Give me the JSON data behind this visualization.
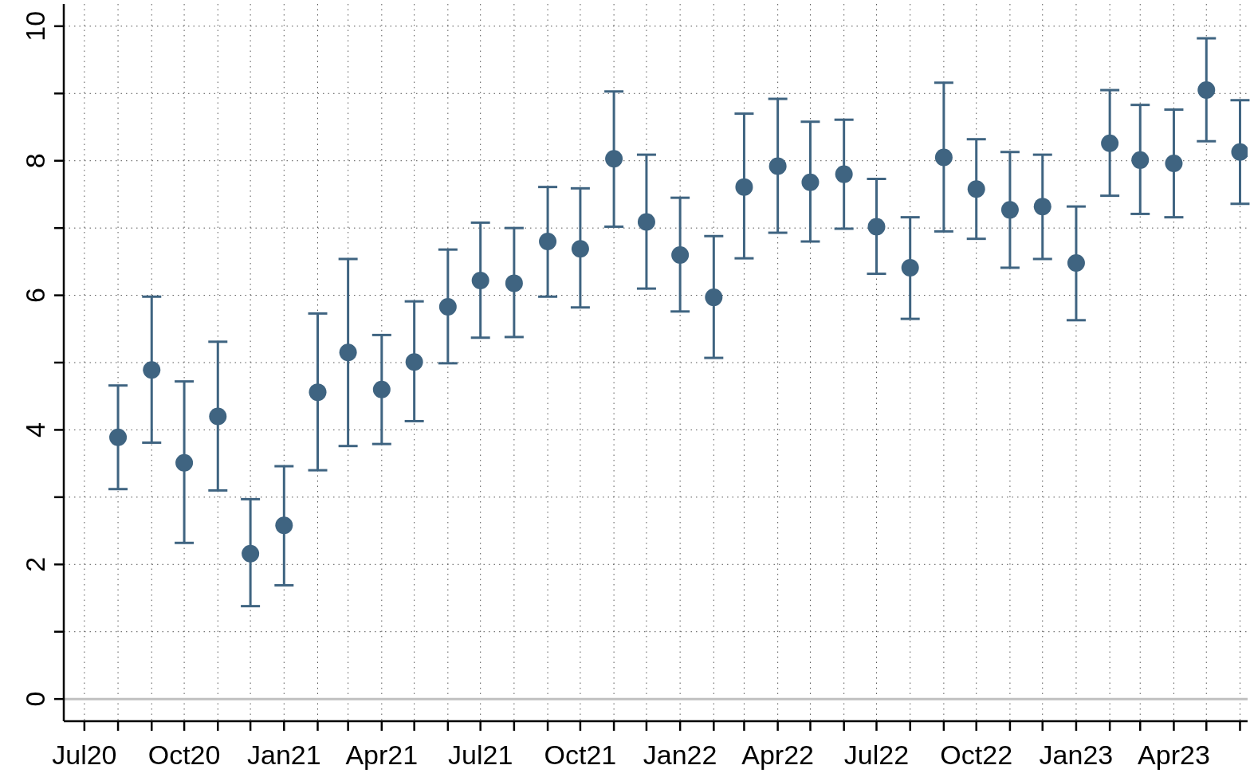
{
  "chart_data": {
    "type": "scatter",
    "marker": "circle",
    "grid": true,
    "line_style": "dotted",
    "x": [
      "2020-08",
      "2020-09",
      "2020-10",
      "2020-11",
      "2020-12",
      "2021-01",
      "2021-02",
      "2021-03",
      "2021-04",
      "2021-05",
      "2021-06",
      "2021-07",
      "2021-08",
      "2021-09",
      "2021-10",
      "2021-11",
      "2021-12",
      "2022-01",
      "2022-02",
      "2022-03",
      "2022-04",
      "2022-05",
      "2022-06",
      "2022-07",
      "2022-08",
      "2022-09",
      "2022-10",
      "2022-11",
      "2022-12",
      "2023-01",
      "2023-02",
      "2023-03",
      "2023-04",
      "2023-05",
      "2023-06"
    ],
    "series": [
      {
        "color": "#3f6481",
        "values": [
          3.89,
          4.89,
          3.51,
          4.2,
          2.16,
          2.58,
          4.56,
          5.15,
          4.6,
          5.01,
          5.83,
          6.22,
          6.18,
          6.8,
          6.69,
          8.03,
          7.09,
          6.6,
          5.97,
          7.61,
          7.92,
          7.68,
          7.8,
          7.02,
          6.41,
          8.05,
          7.58,
          7.27,
          7.32,
          6.48,
          8.26,
          8.01,
          7.96,
          9.05,
          8.13
        ],
        "errors": [
          [
            3.12,
            4.66
          ],
          [
            3.81,
            5.98
          ],
          [
            2.32,
            4.72
          ],
          [
            3.1,
            5.31
          ],
          [
            1.38,
            2.97
          ],
          [
            1.69,
            3.46
          ],
          [
            3.4,
            5.73
          ],
          [
            3.76,
            6.54
          ],
          [
            3.79,
            5.41
          ],
          [
            4.13,
            5.91
          ],
          [
            4.99,
            6.68
          ],
          [
            5.37,
            7.08
          ],
          [
            5.38,
            7.0
          ],
          [
            5.98,
            7.61
          ],
          [
            5.82,
            7.59
          ],
          [
            7.02,
            9.03
          ],
          [
            6.1,
            8.09
          ],
          [
            5.76,
            7.45
          ],
          [
            5.07,
            6.88
          ],
          [
            6.55,
            8.7
          ],
          [
            6.93,
            8.92
          ],
          [
            6.8,
            8.58
          ],
          [
            6.99,
            8.61
          ],
          [
            6.32,
            7.73
          ],
          [
            5.65,
            7.16
          ],
          [
            6.95,
            9.16
          ],
          [
            6.84,
            8.32
          ],
          [
            6.41,
            8.13
          ],
          [
            6.54,
            8.09
          ],
          [
            5.63,
            7.32
          ],
          [
            7.48,
            9.05
          ],
          [
            7.21,
            8.83
          ],
          [
            7.16,
            8.76
          ],
          [
            8.29,
            9.82
          ],
          [
            7.36,
            8.9
          ]
        ]
      }
    ],
    "xlim": [
      "2020-06-12",
      "2023-06-08"
    ],
    "xticks": [
      {
        "value": "2020-07",
        "label": "Jul20"
      },
      {
        "value": "2020-08",
        "label": null
      },
      {
        "value": "2020-09",
        "label": null
      },
      {
        "value": "2020-10",
        "label": "Oct20"
      },
      {
        "value": "2020-11",
        "label": null
      },
      {
        "value": "2020-12",
        "label": null
      },
      {
        "value": "2021-01",
        "label": "Jan21"
      },
      {
        "value": "2021-02",
        "label": null
      },
      {
        "value": "2021-03",
        "label": null
      },
      {
        "value": "2021-04",
        "label": "Apr21"
      },
      {
        "value": "2021-05",
        "label": null
      },
      {
        "value": "2021-06",
        "label": null
      },
      {
        "value": "2021-07",
        "label": "Jul21"
      },
      {
        "value": "2021-08",
        "label": null
      },
      {
        "value": "2021-09",
        "label": null
      },
      {
        "value": "2021-10",
        "label": "Oct21"
      },
      {
        "value": "2021-11",
        "label": null
      },
      {
        "value": "2021-12",
        "label": null
      },
      {
        "value": "2022-01",
        "label": "Jan22"
      },
      {
        "value": "2022-02",
        "label": null
      },
      {
        "value": "2022-03",
        "label": null
      },
      {
        "value": "2022-04",
        "label": "Apr22"
      },
      {
        "value": "2022-05",
        "label": null
      },
      {
        "value": "2022-06",
        "label": null
      },
      {
        "value": "2022-07",
        "label": "Jul22"
      },
      {
        "value": "2022-08",
        "label": null
      },
      {
        "value": "2022-09",
        "label": null
      },
      {
        "value": "2022-10",
        "label": "Oct22"
      },
      {
        "value": "2022-11",
        "label": null
      },
      {
        "value": "2022-12",
        "label": null
      },
      {
        "value": "2023-01",
        "label": "Jan23"
      },
      {
        "value": "2023-02",
        "label": null
      },
      {
        "value": "2023-03",
        "label": null
      },
      {
        "value": "2023-04",
        "label": "Apr23"
      },
      {
        "value": "2023-05",
        "label": null
      },
      {
        "value": "2023-06",
        "label": null
      }
    ],
    "ylim": [
      -0.33,
      10.33
    ],
    "yticks": [
      0,
      {
        "value": 1,
        "label": null
      },
      2,
      {
        "value": 3,
        "label": null
      },
      4,
      {
        "value": 5,
        "label": null
      },
      6,
      {
        "value": 7,
        "label": null
      },
      8,
      {
        "value": 9,
        "label": null
      },
      10
    ],
    "ref_lines": [
      {
        "axis": "y",
        "value": 0,
        "color": "#c0c0c0"
      }
    ]
  }
}
